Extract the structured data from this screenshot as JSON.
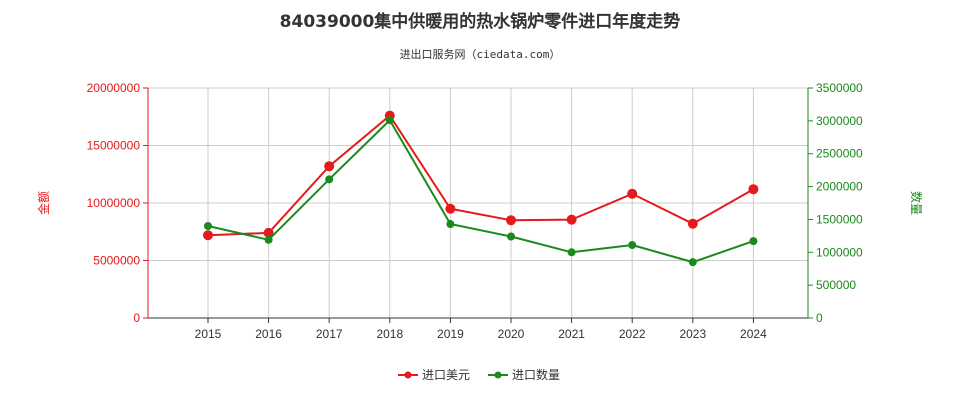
{
  "chart_data": {
    "type": "line",
    "title": "84039000集中供暖用的热水锅炉零件进口年度走势",
    "subtitle": "进出口服务网（ciedata.com）",
    "categories": [
      "2015",
      "2016",
      "2017",
      "2018",
      "2019",
      "2020",
      "2021",
      "2022",
      "2023",
      "2024"
    ],
    "y_left": {
      "label": "金额",
      "min": 0,
      "max": 20000000,
      "ticks": [
        "0",
        "5000000",
        "10000000",
        "15000000",
        "20000000"
      ],
      "color": "#e41a1c"
    },
    "y_right": {
      "label": "数量",
      "min": 0,
      "max": 3500000,
      "ticks": [
        "0",
        "500000",
        "1000000",
        "1500000",
        "2000000",
        "2500000",
        "3000000",
        "3500000"
      ],
      "color": "#1a8a1a"
    },
    "grid": true,
    "legend_position": "bottom-center",
    "series": [
      {
        "name": "进口美元",
        "axis": "left",
        "color": "#e41a1c",
        "values": [
          7200000,
          7400000,
          13200000,
          17600000,
          9500000,
          8500000,
          8550000,
          10800000,
          8200000,
          11200000
        ]
      },
      {
        "name": "进口数量",
        "axis": "right",
        "color": "#1a8a1a",
        "values": [
          1400000,
          1190000,
          2110000,
          3010000,
          1430000,
          1240000,
          1000000,
          1110000,
          850000,
          1170000
        ]
      }
    ]
  }
}
